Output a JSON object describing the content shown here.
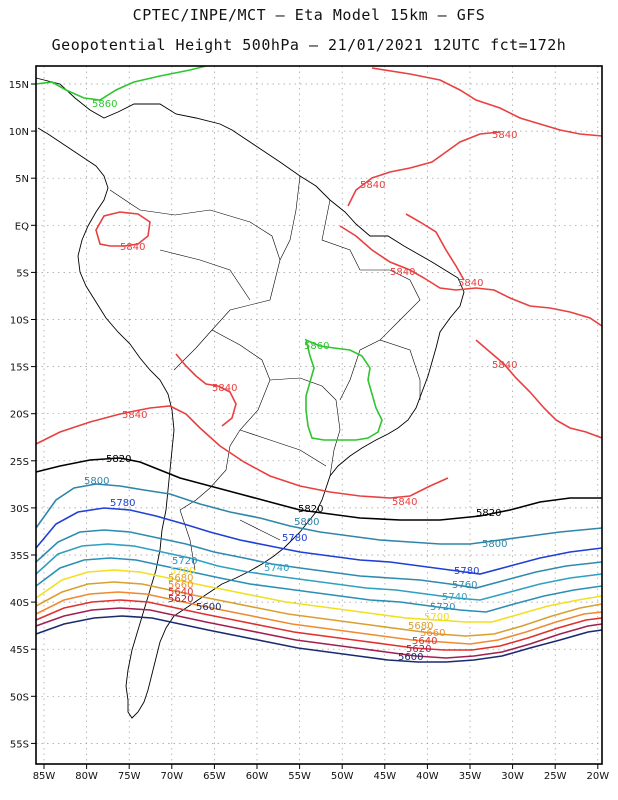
{
  "title_line1": "CPTEC/INPE/MCT –  Eta Model 15km – GFS",
  "title_line2": "Geopotential Height 500hPa – 21/01/2021 12UTC fct=172h",
  "colors": {
    "frame": "#000000",
    "grid": "#9a9a9a",
    "land": "#000000",
    "c5860": "#2ec52e",
    "c5840": "#e84040",
    "c5820": "#000000",
    "c5800": "#2f86a8",
    "c5780": "#1f3fd6",
    "c5760": "#2f8ab0",
    "c5740": "#2fa0c0",
    "c5720": "#2a8fb5",
    "c5700": "#f0e020",
    "c5680": "#d9a030",
    "c5660": "#f08a30",
    "c5640": "#e03030",
    "c5620": "#a02050",
    "c5600": "#1a2a70"
  },
  "axes": {
    "lon_labels": [
      "85W",
      "80W",
      "75W",
      "70W",
      "65W",
      "60W",
      "55W",
      "50W",
      "45W",
      "40W",
      "35W",
      "30W",
      "25W",
      "20W"
    ],
    "lat_labels": [
      "15N",
      "10N",
      "5N",
      "EQ",
      "5S",
      "10S",
      "15S",
      "20S",
      "25S",
      "30S",
      "35S",
      "40S",
      "45S",
      "50S",
      "55S"
    ]
  },
  "contour_labels": {
    "l5860_a": "5860",
    "l5860_b": "5860",
    "l5840_a": "5840",
    "l5840_b": "5840",
    "l5840_c": "5840",
    "l5840_d": "5840",
    "l5840_e": "5840",
    "l5840_f": "5840",
    "l5840_g": "5840",
    "l5840_h": "5840",
    "l5840_i": "5840",
    "l5820_a": "5820",
    "l5820_b": "5820",
    "l5820_c": "5820",
    "l5800_a": "5800",
    "l5800_b": "5800",
    "l5800_c": "5800",
    "l5780_a": "5780",
    "l5780_b": "5780",
    "l5780_c": "5780",
    "l5760_a": "5760",
    "l5740_a": "5740",
    "l5740_b": "5740",
    "l5720_a": "5720",
    "l5720_b": "5720",
    "l5700_a": "5700",
    "l5700_b": "5700",
    "l5680_a": "5680",
    "l5680_b": "5680",
    "l5660_a": "5660",
    "l5660_b": "5660",
    "l5640_a": "5640",
    "l5640_b": "5640",
    "l5620_a": "5620",
    "l5620_b": "5620",
    "l5600_a": "5600",
    "l5600_b": "5600"
  }
}
